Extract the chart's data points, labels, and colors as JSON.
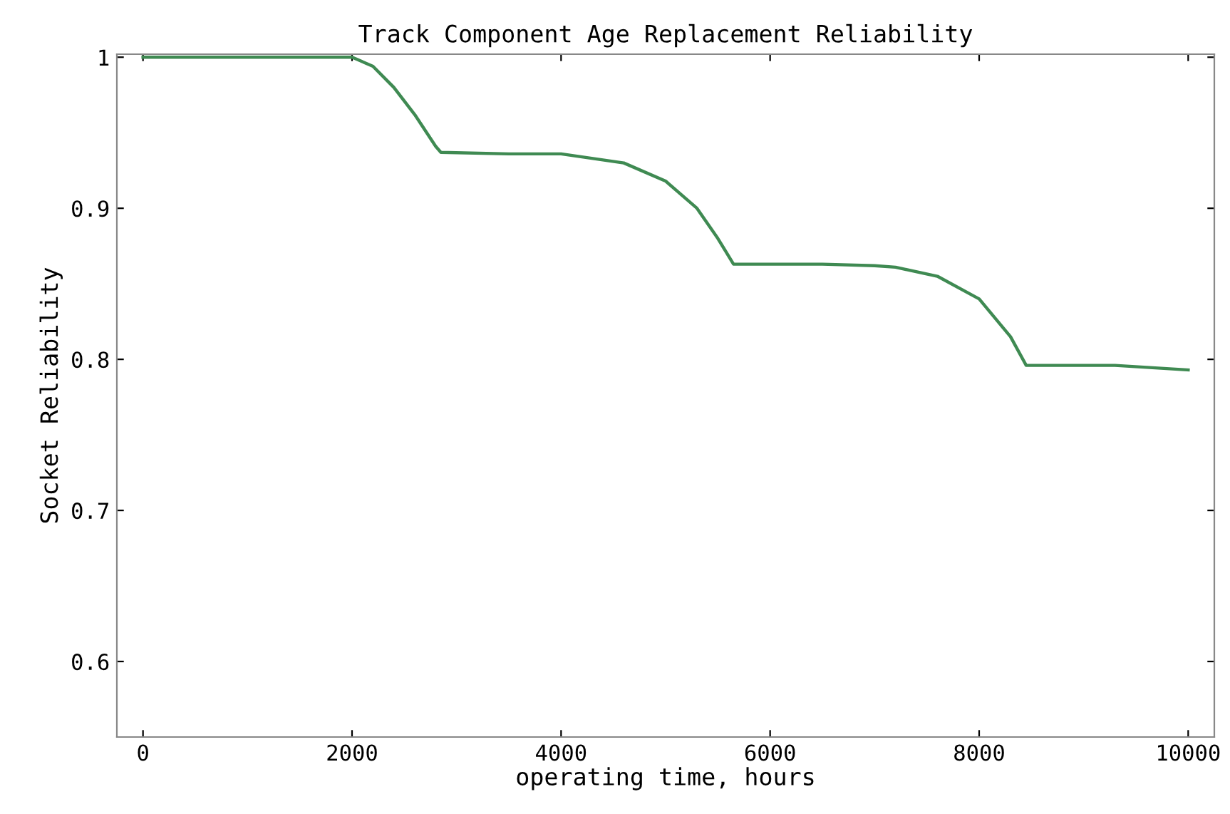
{
  "chart_data": {
    "type": "line",
    "title": "Track Component Age Replacement Reliability",
    "xlabel": "operating time, hours",
    "ylabel": "Socket Reliability",
    "x": [
      0,
      1000,
      2000,
      2200,
      2400,
      2600,
      2800,
      2850,
      3500,
      4000,
      4200,
      4600,
      5000,
      5300,
      5500,
      5650,
      6500,
      7000,
      7200,
      7600,
      8000,
      8300,
      8450,
      9300,
      10000
    ],
    "series": [
      {
        "color": "#3f8a52",
        "values": [
          1,
          1,
          1,
          0.994,
          0.98,
          0.962,
          0.941,
          0.937,
          0.936,
          0.936,
          0.934,
          0.93,
          0.918,
          0.9,
          0.88,
          0.863,
          0.863,
          0.862,
          0.861,
          0.855,
          0.84,
          0.815,
          0.796,
          0.796,
          0.793
        ]
      }
    ],
    "xlim": [
      -250,
      10250
    ],
    "ylim": [
      0.55,
      1.002
    ],
    "xticks": [
      0,
      2000,
      4000,
      6000,
      8000,
      10000
    ],
    "yticks": [
      {
        "value": 0.6,
        "label": "0.6"
      },
      {
        "value": 0.7,
        "label": "0.7"
      },
      {
        "value": 0.8,
        "label": "0.8"
      },
      {
        "value": 0.9,
        "label": "0.9"
      },
      {
        "value": 1,
        "label": "1"
      }
    ],
    "grid": false,
    "legend": false,
    "marker": "none",
    "line_style": "solid"
  }
}
